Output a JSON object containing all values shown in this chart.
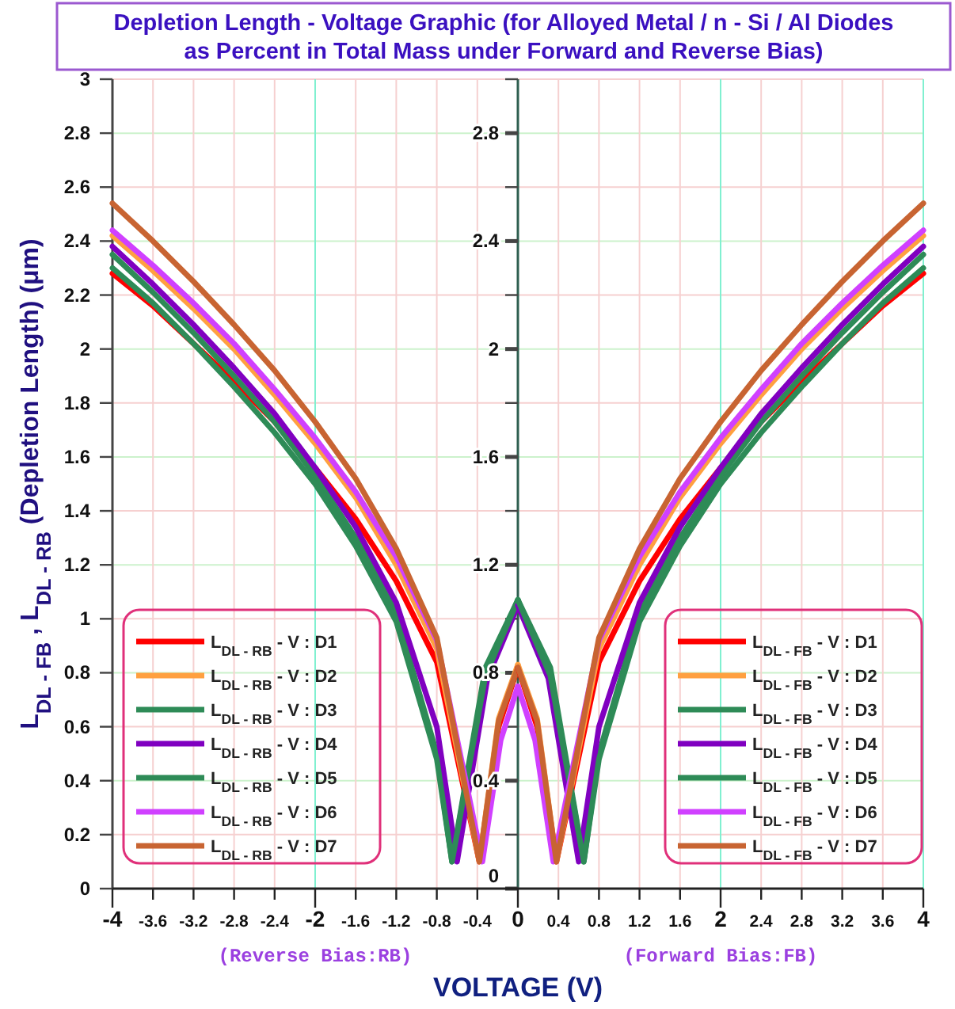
{
  "chart_data": {
    "type": "line",
    "title": "Depletion Length - Voltage Graphic (for Alloyed Metal / n - Si / Al Diodes\nas Percent in Total Mass under Forward and Reverse Bias)",
    "xlabel": "VOLTAGE (V)",
    "ylabel": "L$_{DL - FB}$ , L$_{DL - RB}$ (Depletion Length) (μm)",
    "annotations": [
      "(Reverse Bias:RB)",
      "(Forward Bias:FB)"
    ],
    "xlim": [
      -4,
      4
    ],
    "ylim": [
      0,
      3
    ],
    "xticks": [
      -4,
      -3.6,
      -3.2,
      -2.8,
      -2.4,
      -2,
      -1.6,
      -1.2,
      -0.8,
      -0.4,
      0,
      0.4,
      0.8,
      1.2,
      1.6,
      2,
      2.4,
      2.8,
      3.2,
      3.6,
      4
    ],
    "yticks": [
      0,
      0.2,
      0.4,
      0.6,
      0.8,
      1,
      1.2,
      1.4,
      1.6,
      1.8,
      2,
      2.2,
      2.4,
      2.6,
      2.8,
      3
    ],
    "y2lim": [
      0,
      3
    ],
    "y2ticks": [
      0,
      {
        "value": 0.2,
        "label": null
      },
      0.4,
      {
        "value": 0.6,
        "label": null
      },
      0.8,
      {
        "value": 1,
        "label": null
      },
      1.2,
      {
        "value": 1.4,
        "label": null
      },
      1.6,
      {
        "value": 1.8,
        "label": null
      },
      2,
      {
        "value": 2.2,
        "label": null
      },
      2.4,
      {
        "value": 2.6,
        "label": null
      },
      2.8,
      {
        "value": 3,
        "label": null
      }
    ],
    "grid": true,
    "legend": "bottom",
    "line_style": "solid",
    "marker": "none",
    "series": [
      {
        "name": "L$_{DL - RB}$ - V : D1",
        "color": "#ff0000",
        "x": [
          -4,
          -3.6,
          -3.2,
          -2.8,
          -2.4,
          -2,
          -1.6,
          -1.2,
          -0.8,
          -0.38,
          -0.19,
          0
        ],
        "values": [
          2.28,
          2.16,
          2.02,
          1.88,
          1.73,
          1.56,
          1.37,
          1.14,
          0.84,
          0.1,
          0.6,
          0.82
        ]
      },
      {
        "name": "L$_{DL - RB}$ - V : D2",
        "color": "#ffa040",
        "x": [
          -4,
          -3.6,
          -3.2,
          -2.8,
          -2.4,
          -2,
          -1.6,
          -1.2,
          -0.8,
          -0.38,
          -0.19,
          0
        ],
        "values": [
          2.42,
          2.29,
          2.15,
          2.0,
          1.83,
          1.65,
          1.45,
          1.2,
          0.89,
          0.1,
          0.63,
          0.83
        ]
      },
      {
        "name": "L$_{DL - RB}$ - V : D3",
        "color": "#2e8b57",
        "x": [
          -4,
          -3.6,
          -3.2,
          -2.8,
          -2.4,
          -2,
          -1.6,
          -1.2,
          -0.8,
          -0.65,
          -0.32,
          0
        ],
        "values": [
          2.35,
          2.21,
          2.06,
          1.9,
          1.73,
          1.53,
          1.3,
          1.02,
          0.5,
          0.1,
          0.82,
          1.07
        ]
      },
      {
        "name": "L$_{DL - RB}$ - V : D4",
        "color": "#8000c0",
        "x": [
          -4,
          -3.6,
          -3.2,
          -2.8,
          -2.4,
          -2,
          -1.6,
          -1.2,
          -0.8,
          -0.6,
          -0.3,
          0
        ],
        "values": [
          2.38,
          2.24,
          2.09,
          1.93,
          1.76,
          1.56,
          1.34,
          1.06,
          0.6,
          0.1,
          0.78,
          1.05
        ]
      },
      {
        "name": "L$_{DL - RB}$ - V : D5",
        "color": "#2e8b57",
        "x": [
          -4,
          -3.6,
          -3.2,
          -2.8,
          -2.4,
          -2,
          -1.6,
          -1.2,
          -0.8,
          -0.65,
          -0.32,
          0
        ],
        "values": [
          2.3,
          2.17,
          2.02,
          1.86,
          1.69,
          1.5,
          1.27,
          0.99,
          0.48,
          0.1,
          0.79,
          1.07
        ]
      },
      {
        "name": "L$_{DL - RB}$ - V : D6",
        "color": "#d040ff",
        "x": [
          -4,
          -3.6,
          -3.2,
          -2.8,
          -2.4,
          -2,
          -1.6,
          -1.2,
          -0.8,
          -0.35,
          -0.17,
          0
        ],
        "values": [
          2.44,
          2.31,
          2.17,
          2.02,
          1.85,
          1.67,
          1.47,
          1.23,
          0.92,
          0.1,
          0.55,
          0.75
        ]
      },
      {
        "name": "L$_{DL - RB}$ - V : D7",
        "color": "#c86432",
        "x": [
          -4,
          -3.6,
          -3.2,
          -2.8,
          -2.4,
          -2,
          -1.6,
          -1.2,
          -0.8,
          -0.38,
          -0.19,
          0
        ],
        "values": [
          2.54,
          2.4,
          2.25,
          2.09,
          1.92,
          1.73,
          1.52,
          1.26,
          0.93,
          0.1,
          0.62,
          0.82
        ]
      },
      {
        "name": "L$_{DL - FB}$ - V : D1",
        "color": "#ff0000",
        "x": [
          0,
          0.19,
          0.38,
          0.8,
          1.2,
          1.6,
          2,
          2.4,
          2.8,
          3.2,
          3.6,
          4
        ],
        "values": [
          0.82,
          0.6,
          0.1,
          0.84,
          1.14,
          1.37,
          1.56,
          1.73,
          1.88,
          2.02,
          2.16,
          2.28
        ]
      },
      {
        "name": "L$_{DL - FB}$ - V : D2",
        "color": "#ffa040",
        "x": [
          0,
          0.19,
          0.38,
          0.8,
          1.2,
          1.6,
          2,
          2.4,
          2.8,
          3.2,
          3.6,
          4
        ],
        "values": [
          0.83,
          0.63,
          0.1,
          0.89,
          1.2,
          1.45,
          1.65,
          1.83,
          2.0,
          2.15,
          2.29,
          2.42
        ]
      },
      {
        "name": "L$_{DL - FB}$ - V : D3",
        "color": "#2e8b57",
        "x": [
          0,
          0.32,
          0.65,
          0.8,
          1.2,
          1.6,
          2,
          2.4,
          2.8,
          3.2,
          3.6,
          4
        ],
        "values": [
          1.07,
          0.82,
          0.1,
          0.5,
          1.02,
          1.3,
          1.53,
          1.73,
          1.9,
          2.06,
          2.21,
          2.35
        ]
      },
      {
        "name": "L$_{DL - FB}$ - V : D4",
        "color": "#8000c0",
        "x": [
          0,
          0.3,
          0.6,
          0.8,
          1.2,
          1.6,
          2,
          2.4,
          2.8,
          3.2,
          3.6,
          4
        ],
        "values": [
          1.05,
          0.78,
          0.1,
          0.6,
          1.06,
          1.34,
          1.56,
          1.76,
          1.93,
          2.09,
          2.24,
          2.38
        ]
      },
      {
        "name": "L$_{DL - FB}$ - V : D5",
        "color": "#2e8b57",
        "x": [
          0,
          0.32,
          0.65,
          0.8,
          1.2,
          1.6,
          2,
          2.4,
          2.8,
          3.2,
          3.6,
          4
        ],
        "values": [
          1.07,
          0.79,
          0.1,
          0.48,
          0.99,
          1.27,
          1.5,
          1.69,
          1.86,
          2.02,
          2.17,
          2.3
        ]
      },
      {
        "name": "L$_{DL - FB}$ - V : D6",
        "color": "#d040ff",
        "x": [
          0,
          0.17,
          0.35,
          0.8,
          1.2,
          1.6,
          2,
          2.4,
          2.8,
          3.2,
          3.6,
          4
        ],
        "values": [
          0.75,
          0.55,
          0.1,
          0.92,
          1.23,
          1.47,
          1.67,
          1.85,
          2.02,
          2.17,
          2.31,
          2.44
        ]
      },
      {
        "name": "L$_{DL - FB}$ - V : D7",
        "color": "#c86432",
        "x": [
          0,
          0.19,
          0.38,
          0.8,
          1.2,
          1.6,
          2,
          2.4,
          2.8,
          3.2,
          3.6,
          4
        ],
        "values": [
          0.82,
          0.62,
          0.1,
          0.93,
          1.26,
          1.52,
          1.73,
          1.92,
          2.09,
          2.25,
          2.4,
          2.54
        ]
      }
    ]
  }
}
